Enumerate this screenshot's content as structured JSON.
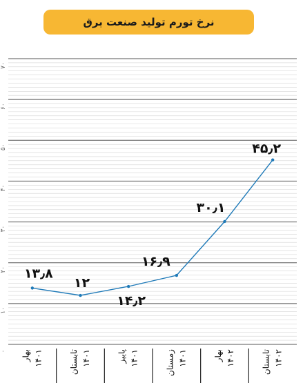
{
  "chart_data": {
    "type": "line",
    "title": "نرخ تورم تولید صنعت برق",
    "xlabel": "",
    "ylabel": "",
    "ylim": [
      0,
      70
    ],
    "y_ticks": [
      "۰",
      "۱۰",
      "۲۰",
      "۳۰",
      "۴۰",
      "۵۰",
      "۶۰",
      "۷۰"
    ],
    "grid": true,
    "legend": "none",
    "categories": [
      {
        "season": "بهار",
        "year": "۱۴۰۱"
      },
      {
        "season": "تابستان",
        "year": "۱۴۰۱"
      },
      {
        "season": "پاییز",
        "year": "۱۴۰۱"
      },
      {
        "season": "زمستان",
        "year": "۱۴۰۱"
      },
      {
        "season": "بهار",
        "year": "۱۴۰۲"
      },
      {
        "season": "تابستان",
        "year": "۱۴۰۲"
      }
    ],
    "series": [
      {
        "values": [
          13.8,
          12,
          14.2,
          16.9,
          30.1,
          45.2
        ],
        "data_labels": [
          "۱۳٫۸",
          "۱۲",
          "۱۴٫۲",
          "۱۶٫۹",
          "۳۰٫۱",
          "۴۵٫۲"
        ],
        "color": "#1f7ab8"
      }
    ],
    "colors": {
      "title_background": "#f7b733",
      "major_grid": "#555555",
      "minor_grid": "#d3d3d3"
    }
  }
}
